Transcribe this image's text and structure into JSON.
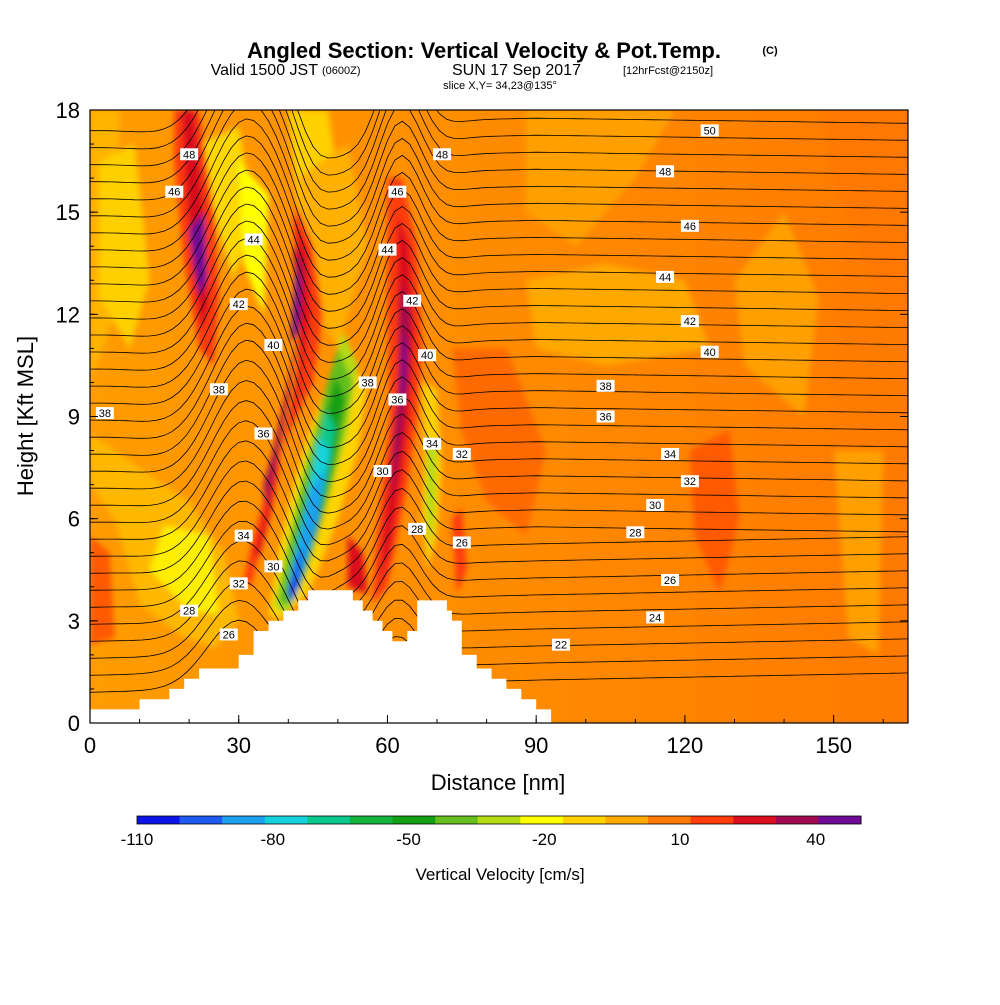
{
  "chart_data": {
    "type": "contour",
    "title": "Angled Section: Vertical Velocity & Pot.Temp.",
    "title_suffix": "(C)",
    "valid_prefix": "Valid 1500 JST",
    "valid_utc": "(0600Z)",
    "valid_date": "SUN 17 Sep 2017",
    "forecast_tag": "[12hrFcst@2150z]",
    "slice_info": "slice X,Y= 34,23@135°",
    "xlabel": "Distance [nm]",
    "ylabel": "Height [Kft MSL]",
    "xlim": [
      0,
      165
    ],
    "ylim": [
      0,
      18
    ],
    "x_ticks": [
      0,
      30,
      60,
      90,
      120,
      150
    ],
    "y_ticks": [
      0,
      3,
      6,
      9,
      12,
      15,
      18
    ],
    "colorbar": {
      "title": "Vertical Velocity [cm/s]",
      "levels": [
        -110,
        -100,
        -90,
        -80,
        -70,
        -60,
        -50,
        -40,
        -30,
        -20,
        -10,
        0,
        10,
        20,
        30,
        40,
        50
      ],
      "tick_labels": [
        -110,
        -80,
        -50,
        -20,
        10,
        40
      ],
      "colors": [
        "#0a14e6",
        "#1e5af0",
        "#1ea0f0",
        "#14d2dc",
        "#0ac88c",
        "#14b43c",
        "#14a014",
        "#64be1e",
        "#b4dc14",
        "#ffff00",
        "#ffd200",
        "#ffaa00",
        "#ff7800",
        "#ff3c0a",
        "#dc0f1e",
        "#a00a50",
        "#6e0a96"
      ]
    },
    "terrain_kft": [
      [
        0,
        0.4
      ],
      [
        10,
        0.4
      ],
      [
        10,
        0.7
      ],
      [
        16,
        0.7
      ],
      [
        16,
        1.0
      ],
      [
        19,
        1.0
      ],
      [
        19,
        1.3
      ],
      [
        22,
        1.3
      ],
      [
        22,
        1.6
      ],
      [
        30,
        1.6
      ],
      [
        30,
        2.0
      ],
      [
        33,
        2.0
      ],
      [
        33,
        2.7
      ],
      [
        36,
        2.7
      ],
      [
        36,
        3.0
      ],
      [
        39,
        3.0
      ],
      [
        39,
        3.3
      ],
      [
        42,
        3.3
      ],
      [
        42,
        3.6
      ],
      [
        44,
        3.6
      ],
      [
        44,
        3.9
      ],
      [
        53,
        3.9
      ],
      [
        53,
        3.6
      ],
      [
        55,
        3.6
      ],
      [
        55,
        3.3
      ],
      [
        57,
        3.3
      ],
      [
        57,
        3.0
      ],
      [
        59,
        3.0
      ],
      [
        59,
        2.7
      ],
      [
        61,
        2.7
      ],
      [
        61,
        2.4
      ],
      [
        64,
        2.4
      ],
      [
        64,
        2.7
      ],
      [
        66,
        2.7
      ],
      [
        66,
        3.6
      ],
      [
        72,
        3.6
      ],
      [
        72,
        3.3
      ],
      [
        73,
        3.3
      ],
      [
        73,
        3.0
      ],
      [
        75,
        3.0
      ],
      [
        75,
        2.0
      ],
      [
        78,
        2.0
      ],
      [
        78,
        1.6
      ],
      [
        81,
        1.6
      ],
      [
        81,
        1.3
      ],
      [
        84,
        1.3
      ],
      [
        84,
        1.0
      ],
      [
        87,
        1.0
      ],
      [
        87,
        0.7
      ],
      [
        90,
        0.7
      ],
      [
        90,
        0.4
      ],
      [
        93,
        0.4
      ],
      [
        93,
        0
      ]
    ],
    "potential_temperature_labels": [
      {
        "value": "48",
        "x": 20,
        "y": 16.7
      },
      {
        "value": "46",
        "x": 17,
        "y": 15.6
      },
      {
        "value": "44",
        "x": 33,
        "y": 14.2
      },
      {
        "value": "42",
        "x": 30,
        "y": 12.3
      },
      {
        "value": "40",
        "x": 37,
        "y": 11.1
      },
      {
        "value": "38",
        "x": 26,
        "y": 9.8
      },
      {
        "value": "36",
        "x": 35,
        "y": 8.5
      },
      {
        "value": "34",
        "x": 31,
        "y": 5.5
      },
      {
        "value": "32",
        "x": 30,
        "y": 4.1
      },
      {
        "value": "30",
        "x": 37,
        "y": 4.6
      },
      {
        "value": "28",
        "x": 20,
        "y": 3.3
      },
      {
        "value": "26",
        "x": 28,
        "y": 2.6
      },
      {
        "value": "38",
        "x": 3,
        "y": 9.1
      },
      {
        "value": "48",
        "x": 71,
        "y": 16.7
      },
      {
        "value": "46",
        "x": 62,
        "y": 15.6
      },
      {
        "value": "44",
        "x": 60,
        "y": 13.9
      },
      {
        "value": "42",
        "x": 65,
        "y": 12.4
      },
      {
        "value": "40",
        "x": 68,
        "y": 10.8
      },
      {
        "value": "38",
        "x": 56,
        "y": 10.0
      },
      {
        "value": "36",
        "x": 62,
        "y": 9.5
      },
      {
        "value": "34",
        "x": 69,
        "y": 8.2
      },
      {
        "value": "32",
        "x": 75,
        "y": 7.9
      },
      {
        "value": "30",
        "x": 59,
        "y": 7.4
      },
      {
        "value": "28",
        "x": 66,
        "y": 5.7
      },
      {
        "value": "26",
        "x": 75,
        "y": 5.3
      },
      {
        "value": "50",
        "x": 125,
        "y": 17.4
      },
      {
        "value": "48",
        "x": 116,
        "y": 16.2
      },
      {
        "value": "46",
        "x": 121,
        "y": 14.6
      },
      {
        "value": "44",
        "x": 116,
        "y": 13.1
      },
      {
        "value": "42",
        "x": 121,
        "y": 11.8
      },
      {
        "value": "40",
        "x": 125,
        "y": 10.9
      },
      {
        "value": "38",
        "x": 104,
        "y": 9.9
      },
      {
        "value": "36",
        "x": 104,
        "y": 9.0
      },
      {
        "value": "34",
        "x": 117,
        "y": 7.9
      },
      {
        "value": "32",
        "x": 121,
        "y": 7.1
      },
      {
        "value": "30",
        "x": 114,
        "y": 6.4
      },
      {
        "value": "28",
        "x": 110,
        "y": 5.6
      },
      {
        "value": "26",
        "x": 117,
        "y": 4.2
      },
      {
        "value": "24",
        "x": 114,
        "y": 3.1
      },
      {
        "value": "22",
        "x": 95,
        "y": 2.3
      }
    ]
  }
}
